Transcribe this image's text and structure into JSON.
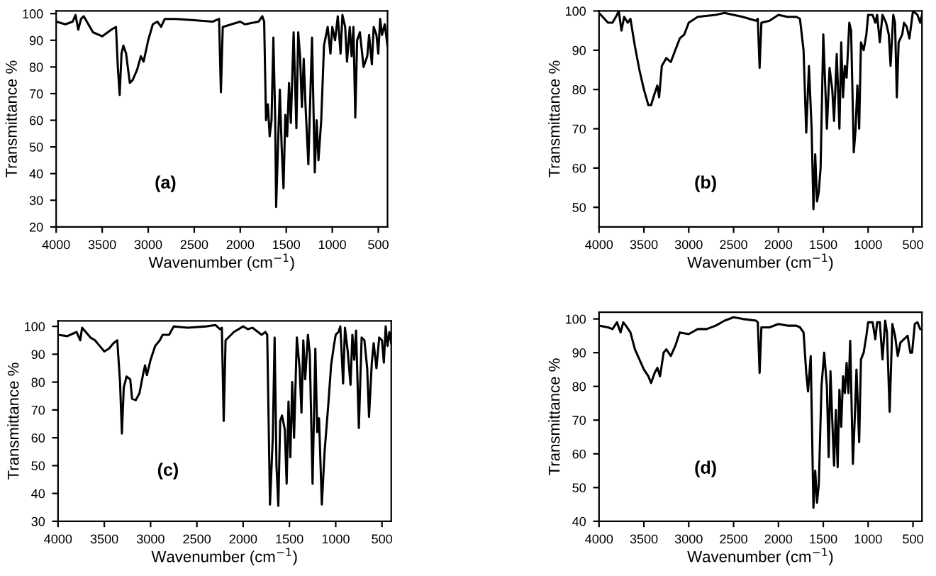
{
  "chart_data": [
    {
      "type": "line",
      "xlabel": "Wavenumber (cm$^{−1}$)",
      "ylabel": "Transmittance %",
      "annotations": [
        "(a)"
      ],
      "xlim": [
        4000,
        400
      ],
      "ylim": [
        20,
        101
      ],
      "xticks": [
        4000,
        3500,
        3000,
        2500,
        2000,
        1500,
        1000,
        500
      ],
      "yticks": [
        20,
        30,
        40,
        50,
        60,
        70,
        80,
        90,
        100
      ],
      "x": [
        4000,
        3900,
        3820,
        3790,
        3760,
        3730,
        3700,
        3650,
        3600,
        3500,
        3400,
        3350,
        3330,
        3310,
        3290,
        3270,
        3240,
        3200,
        3170,
        3120,
        3080,
        3050,
        3000,
        2950,
        2900,
        2860,
        2820,
        2700,
        2500,
        2300,
        2230,
        2210,
        2190,
        2000,
        1950,
        1800,
        1760,
        1740,
        1720,
        1700,
        1680,
        1660,
        1640,
        1620,
        1610,
        1590,
        1570,
        1550,
        1530,
        1510,
        1490,
        1470,
        1450,
        1420,
        1390,
        1370,
        1350,
        1330,
        1310,
        1290,
        1260,
        1220,
        1190,
        1170,
        1150,
        1120,
        1090,
        1050,
        1020,
        1000,
        970,
        940,
        910,
        890,
        860,
        840,
        810,
        790,
        770,
        750,
        730,
        700,
        660,
        620,
        600,
        570,
        550,
        520,
        500,
        480,
        460,
        430,
        400
      ],
      "series": [
        {
          "color": "#000000",
          "values": [
            97,
            96,
            97,
            99.5,
            94,
            98,
            99,
            96,
            93,
            91.5,
            94,
            95,
            80,
            69.5,
            85,
            88,
            85,
            74,
            75,
            79,
            84,
            82,
            90,
            96,
            97,
            95,
            98,
            98,
            97.5,
            97,
            98,
            70.5,
            95,
            97,
            96,
            97,
            99,
            97,
            60,
            66,
            54,
            60,
            91,
            60,
            27.5,
            50,
            71.5,
            50,
            34.5,
            62,
            54,
            74,
            59,
            93,
            57,
            93,
            84,
            65,
            83,
            65,
            43.5,
            91,
            40.5,
            60,
            45,
            60,
            88,
            95,
            85,
            95,
            90,
            99,
            85,
            99.5,
            95,
            82,
            95,
            84,
            95,
            61,
            90,
            93,
            80,
            84,
            92,
            81,
            95,
            92,
            85,
            98,
            92,
            96,
            88
          ]
        }
      ]
    },
    {
      "type": "line",
      "xlabel": "Wavenumber (cm$^{−1}$)",
      "ylabel": "Transmittance %",
      "annotations": [
        "(b)"
      ],
      "xlim": [
        4000,
        400
      ],
      "ylim": [
        45,
        100
      ],
      "xticks": [
        4000,
        3500,
        3000,
        2500,
        2000,
        1500,
        1000,
        500
      ],
      "yticks": [
        50,
        60,
        70,
        80,
        90,
        100
      ],
      "x": [
        4000,
        3900,
        3850,
        3800,
        3780,
        3750,
        3720,
        3680,
        3650,
        3600,
        3550,
        3500,
        3450,
        3420,
        3380,
        3350,
        3330,
        3300,
        3250,
        3200,
        3150,
        3100,
        3050,
        3000,
        2900,
        2700,
        2600,
        2400,
        2250,
        2230,
        2210,
        2190,
        2100,
        2000,
        1900,
        1800,
        1760,
        1720,
        1690,
        1660,
        1630,
        1610,
        1590,
        1570,
        1550,
        1530,
        1500,
        1460,
        1430,
        1400,
        1380,
        1350,
        1320,
        1300,
        1280,
        1260,
        1240,
        1210,
        1190,
        1160,
        1140,
        1120,
        1100,
        1080,
        1050,
        1020,
        1000,
        950,
        920,
        900,
        870,
        840,
        800,
        770,
        750,
        720,
        700,
        680,
        660,
        620,
        600,
        570,
        540,
        500,
        450,
        420,
        400
      ],
      "series": [
        {
          "color": "#000000",
          "values": [
            99.5,
            97,
            97,
            99,
            100,
            95,
            98.5,
            97,
            98,
            91,
            85,
            80,
            76,
            76,
            79,
            81,
            78,
            86,
            88,
            87,
            90,
            93,
            94,
            97,
            98.5,
            99,
            99.5,
            98.5,
            97.5,
            98,
            85.5,
            97,
            97.5,
            99,
            98.5,
            98.5,
            98,
            90,
            69,
            86,
            70,
            49.5,
            63.5,
            51.5,
            54,
            60,
            94,
            70,
            85.5,
            80,
            72,
            89,
            70,
            92,
            78,
            86,
            83,
            97,
            95,
            64,
            70,
            81,
            70,
            92,
            90,
            94,
            99,
            99,
            97,
            99,
            92,
            99,
            97,
            94,
            86,
            99,
            97,
            78,
            92,
            94,
            97,
            96,
            93,
            100,
            99,
            97,
            99
          ]
        }
      ]
    },
    {
      "type": "line",
      "xlabel": "Wavenumber (cm$^{−1}$)",
      "ylabel": "Transmittance %",
      "annotations": [
        "(c)"
      ],
      "xlim": [
        4000,
        400
      ],
      "ylim": [
        30,
        102
      ],
      "xticks": [
        4000,
        3500,
        3000,
        2500,
        2000,
        1500,
        1000,
        500
      ],
      "yticks": [
        30,
        40,
        50,
        60,
        70,
        80,
        90,
        100
      ],
      "x": [
        4000,
        3900,
        3800,
        3760,
        3740,
        3700,
        3650,
        3600,
        3550,
        3500,
        3450,
        3400,
        3360,
        3330,
        3310,
        3290,
        3260,
        3220,
        3200,
        3160,
        3120,
        3080,
        3060,
        3040,
        3000,
        2950,
        2900,
        2870,
        2800,
        2750,
        2600,
        2400,
        2300,
        2250,
        2230,
        2210,
        2190,
        2100,
        2000,
        1950,
        1900,
        1800,
        1760,
        1740,
        1710,
        1680,
        1660,
        1640,
        1620,
        1600,
        1580,
        1550,
        1530,
        1510,
        1490,
        1470,
        1450,
        1420,
        1390,
        1370,
        1350,
        1330,
        1300,
        1280,
        1250,
        1220,
        1200,
        1180,
        1150,
        1120,
        1080,
        1050,
        1020,
        1000,
        970,
        950,
        920,
        900,
        870,
        840,
        820,
        800,
        780,
        750,
        720,
        690,
        660,
        640,
        610,
        590,
        560,
        530,
        500,
        480,
        460,
        440,
        420,
        400
      ],
      "series": [
        {
          "color": "#000000",
          "values": [
            97,
            96.5,
            98,
            95,
            99.5,
            98,
            96,
            95,
            93,
            91,
            92,
            94,
            95,
            80,
            61.5,
            78,
            82,
            81,
            74,
            73.5,
            76,
            83,
            86,
            82.5,
            88,
            93,
            95,
            97,
            97,
            100,
            99.5,
            100,
            100.5,
            99,
            99.5,
            66,
            95,
            98,
            100,
            99,
            99.5,
            97,
            98,
            97,
            36,
            60,
            96,
            50,
            35.5,
            66,
            68,
            63,
            43.5,
            73,
            53,
            80,
            60,
            96,
            85,
            69,
            95,
            81,
            97,
            90,
            43.5,
            92,
            62,
            67,
            36,
            55,
            72,
            86,
            93,
            97,
            98,
            100,
            79.5,
            99.5,
            91,
            79,
            97,
            88,
            98.5,
            63.5,
            96,
            95,
            85,
            67.5,
            87,
            94,
            85,
            96,
            95,
            87,
            100,
            93,
            98,
            94
          ]
        }
      ]
    },
    {
      "type": "line",
      "xlabel": "Wavenumber (cm$^{−1}$)",
      "ylabel": "Transmittance %",
      "annotations": [
        "(d)"
      ],
      "xlim": [
        4000,
        400
      ],
      "ylim": [
        40,
        102
      ],
      "xticks": [
        4000,
        3500,
        3000,
        2500,
        2000,
        1500,
        1000,
        500
      ],
      "yticks": [
        40,
        50,
        60,
        70,
        80,
        90,
        100
      ],
      "x": [
        4000,
        3900,
        3850,
        3800,
        3760,
        3730,
        3700,
        3650,
        3600,
        3550,
        3500,
        3450,
        3420,
        3380,
        3350,
        3320,
        3280,
        3250,
        3200,
        3150,
        3100,
        3000,
        2900,
        2800,
        2700,
        2600,
        2500,
        2400,
        2250,
        2230,
        2210,
        2190,
        2100,
        2000,
        1900,
        1800,
        1760,
        1720,
        1690,
        1670,
        1640,
        1610,
        1590,
        1570,
        1550,
        1520,
        1490,
        1460,
        1440,
        1420,
        1400,
        1380,
        1360,
        1340,
        1320,
        1300,
        1280,
        1260,
        1240,
        1220,
        1200,
        1170,
        1150,
        1130,
        1100,
        1080,
        1050,
        1020,
        1000,
        950,
        920,
        900,
        870,
        840,
        810,
        790,
        760,
        730,
        700,
        670,
        640,
        600,
        560,
        530,
        510,
        480,
        450,
        420,
        400
      ],
      "series": [
        {
          "color": "#000000",
          "values": [
            98,
            97.5,
            97,
            99,
            96,
            99,
            98,
            96,
            91,
            88,
            85,
            83,
            81,
            84,
            85.5,
            83,
            90,
            91,
            89,
            92,
            96,
            95.5,
            97,
            97,
            98,
            99.5,
            100.5,
            100,
            99.5,
            99,
            84,
            97.5,
            97.5,
            98.5,
            98,
            98,
            97.5,
            96,
            84,
            78.5,
            89,
            44,
            55,
            45.5,
            51,
            80,
            90,
            80,
            59,
            84.5,
            70,
            56.5,
            73,
            56,
            79,
            68,
            83,
            78,
            87,
            78,
            93.5,
            57,
            70,
            85,
            63.5,
            88,
            90,
            95,
            99,
            99,
            94,
            99,
            99,
            88,
            99.5,
            96,
            72.5,
            98.5,
            95,
            89,
            93,
            94,
            95,
            90,
            90,
            98.5,
            99,
            97,
            97
          ]
        }
      ]
    }
  ]
}
